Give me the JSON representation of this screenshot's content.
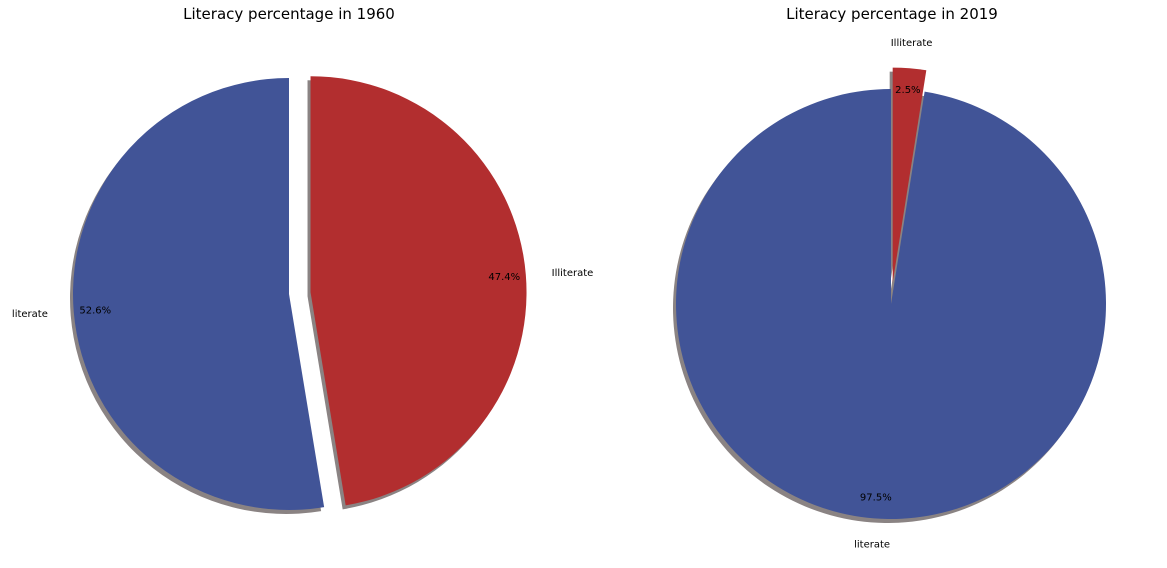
{
  "chart_data": [
    {
      "type": "pie",
      "title": "Literacy percentage in 1960",
      "slices": [
        {
          "label": "literate",
          "value": 52.6,
          "pct_label": "52.6%",
          "color": "#415497",
          "explode": false
        },
        {
          "label": "Illiterate",
          "value": 47.4,
          "pct_label": "47.4%",
          "color": "#b22e2f",
          "explode": true
        }
      ],
      "start_angle_deg": 90,
      "direction": "counterclockwise",
      "shadow": true
    },
    {
      "type": "pie",
      "title": "Literacy percentage in 2019",
      "slices": [
        {
          "label": "literate",
          "value": 97.5,
          "pct_label": "97.5%",
          "color": "#415497",
          "explode": false
        },
        {
          "label": "Illiterate",
          "value": 2.5,
          "pct_label": "2.5%",
          "color": "#b22e2f",
          "explode": true
        }
      ],
      "start_angle_deg": 90,
      "direction": "counterclockwise",
      "shadow": true
    }
  ]
}
